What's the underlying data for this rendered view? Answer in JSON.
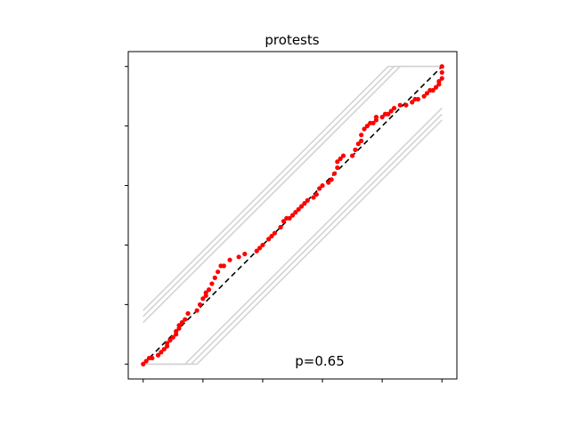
{
  "chart_data": {
    "type": "scatter",
    "title": "protests",
    "xlabel": "",
    "ylabel": "",
    "xlim": [
      -0.05,
      1.05
    ],
    "ylim": [
      -0.05,
      1.05
    ],
    "x_ticks": [
      0,
      0.2,
      0.4,
      0.6,
      0.8,
      1.0
    ],
    "y_ticks": [
      0,
      0.2,
      0.4,
      0.6,
      0.8,
      1.0
    ],
    "tick_labels_shown": false,
    "grid": false,
    "annotation": "p=0.65",
    "colors": {
      "points": "#ff0000",
      "reference_line": "#000000",
      "envelope": "#d3d3d3"
    },
    "reference_line": {
      "style": "dashed",
      "from": [
        0,
        0
      ],
      "to": [
        1,
        1
      ]
    },
    "envelopes": [
      {
        "offset": 0.14
      },
      {
        "offset": 0.16
      },
      {
        "offset": 0.18
      }
    ],
    "series": [
      {
        "points": [
          [
            0.0,
            0.0
          ],
          [
            0.01,
            0.01
          ],
          [
            0.02,
            0.02
          ],
          [
            0.03,
            0.02
          ],
          [
            0.05,
            0.03
          ],
          [
            0.06,
            0.04
          ],
          [
            0.07,
            0.05
          ],
          [
            0.08,
            0.06
          ],
          [
            0.08,
            0.07
          ],
          [
            0.09,
            0.08
          ],
          [
            0.1,
            0.09
          ],
          [
            0.11,
            0.1
          ],
          [
            0.11,
            0.11
          ],
          [
            0.12,
            0.12
          ],
          [
            0.12,
            0.13
          ],
          [
            0.13,
            0.14
          ],
          [
            0.14,
            0.15
          ],
          [
            0.15,
            0.17
          ],
          [
            0.18,
            0.18
          ],
          [
            0.19,
            0.2
          ],
          [
            0.2,
            0.22
          ],
          [
            0.21,
            0.23
          ],
          [
            0.21,
            0.24
          ],
          [
            0.22,
            0.25
          ],
          [
            0.23,
            0.27
          ],
          [
            0.24,
            0.29
          ],
          [
            0.25,
            0.31
          ],
          [
            0.26,
            0.33
          ],
          [
            0.27,
            0.33
          ],
          [
            0.29,
            0.35
          ],
          [
            0.32,
            0.36
          ],
          [
            0.34,
            0.37
          ],
          [
            0.38,
            0.38
          ],
          [
            0.39,
            0.39
          ],
          [
            0.4,
            0.4
          ],
          [
            0.42,
            0.42
          ],
          [
            0.43,
            0.43
          ],
          [
            0.44,
            0.44
          ],
          [
            0.46,
            0.46
          ],
          [
            0.47,
            0.48
          ],
          [
            0.48,
            0.49
          ],
          [
            0.49,
            0.49
          ],
          [
            0.5,
            0.5
          ],
          [
            0.51,
            0.51
          ],
          [
            0.52,
            0.52
          ],
          [
            0.53,
            0.53
          ],
          [
            0.54,
            0.54
          ],
          [
            0.55,
            0.55
          ],
          [
            0.57,
            0.56
          ],
          [
            0.58,
            0.57
          ],
          [
            0.59,
            0.59
          ],
          [
            0.6,
            0.6
          ],
          [
            0.62,
            0.61
          ],
          [
            0.63,
            0.62
          ],
          [
            0.64,
            0.64
          ],
          [
            0.65,
            0.66
          ],
          [
            0.65,
            0.68
          ],
          [
            0.66,
            0.69
          ],
          [
            0.67,
            0.7
          ],
          [
            0.7,
            0.7
          ],
          [
            0.71,
            0.72
          ],
          [
            0.72,
            0.74
          ],
          [
            0.73,
            0.75
          ],
          [
            0.73,
            0.77
          ],
          [
            0.74,
            0.79
          ],
          [
            0.75,
            0.8
          ],
          [
            0.76,
            0.81
          ],
          [
            0.77,
            0.81
          ],
          [
            0.78,
            0.82
          ],
          [
            0.78,
            0.83
          ],
          [
            0.8,
            0.83
          ],
          [
            0.81,
            0.84
          ],
          [
            0.82,
            0.84
          ],
          [
            0.83,
            0.85
          ],
          [
            0.84,
            0.86
          ],
          [
            0.86,
            0.87
          ],
          [
            0.88,
            0.87
          ],
          [
            0.9,
            0.88
          ],
          [
            0.91,
            0.89
          ],
          [
            0.92,
            0.89
          ],
          [
            0.94,
            0.9
          ],
          [
            0.95,
            0.91
          ],
          [
            0.96,
            0.92
          ],
          [
            0.97,
            0.92
          ],
          [
            0.98,
            0.93
          ],
          [
            0.99,
            0.94
          ],
          [
            0.99,
            0.95
          ],
          [
            1.0,
            0.96
          ],
          [
            1.0,
            0.98
          ],
          [
            1.0,
            1.0
          ]
        ]
      }
    ]
  }
}
